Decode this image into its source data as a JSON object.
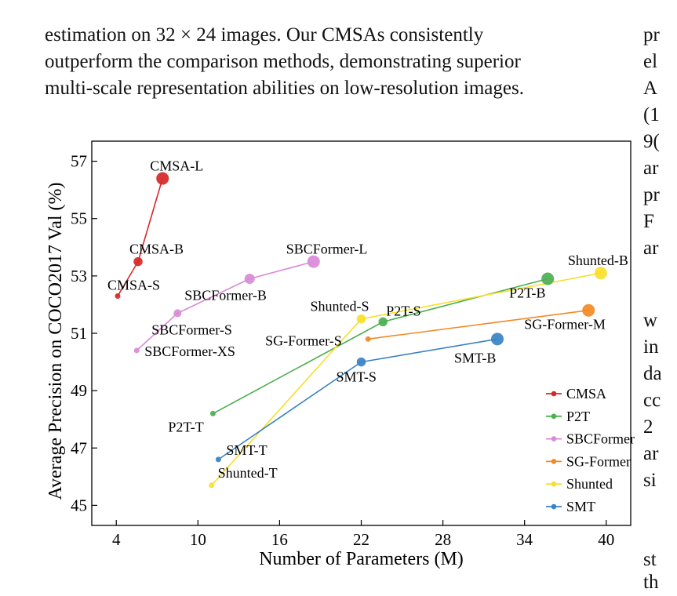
{
  "paragraph": [
    "estimation on 32 × 24 images. Our CMSAs consistently",
    "outperform the comparison methods, demonstrating superior",
    "multi-scale representation abilities on low-resolution images."
  ],
  "right_column_fragments": {
    "top": [
      "pr",
      "el",
      "A",
      "(1",
      "9(",
      "ar",
      "pr",
      "F",
      "ar"
    ],
    "middle": [
      "w",
      "in",
      "da",
      "cc",
      "2",
      "ar",
      "si"
    ],
    "bottom": [
      "st",
      "th"
    ]
  },
  "colors": {
    "CMSA": "#d62728",
    "P2T": "#4caf50",
    "SBCFormer": "#d98ad8",
    "SG-Former": "#f28a24",
    "Shunted": "#f7df2a",
    "SMT": "#3a82c4"
  },
  "chart_data": {
    "type": "line",
    "xlabel": "Number of Parameters (M)",
    "ylabel": "Average Precision on COCO2017 Val (%)",
    "xlim": [
      2.2,
      41.8
    ],
    "ylim": [
      44.3,
      57.7
    ],
    "xticks": [
      4,
      10,
      16,
      22,
      28,
      34,
      40
    ],
    "yticks": [
      45,
      47,
      49,
      51,
      53,
      55,
      57
    ],
    "grid": false,
    "legend_position": "bottom-right",
    "legend": [
      "CMSA",
      "P2T",
      "SBCFormer",
      "SG-Former",
      "Shunted",
      "SMT"
    ],
    "series": [
      {
        "name": "CMSA",
        "points": [
          {
            "label": "CMSA-S",
            "x": 4.1,
            "y": 52.3
          },
          {
            "label": "CMSA-B",
            "x": 5.6,
            "y": 53.5
          },
          {
            "label": "CMSA-L",
            "x": 7.4,
            "y": 56.4
          }
        ]
      },
      {
        "name": "P2T",
        "points": [
          {
            "label": "P2T-T",
            "x": 11.1,
            "y": 48.2
          },
          {
            "label": "P2T-S",
            "x": 23.6,
            "y": 51.4
          },
          {
            "label": "P2T-B",
            "x": 35.7,
            "y": 52.9
          }
        ]
      },
      {
        "name": "SBCFormer",
        "points": [
          {
            "label": "SBCFormer-XS",
            "x": 5.5,
            "y": 50.4
          },
          {
            "label": "SBCFormer-S",
            "x": 8.5,
            "y": 51.7
          },
          {
            "label": "SBCFormer-B",
            "x": 13.8,
            "y": 52.9
          },
          {
            "label": "SBCFormer-L",
            "x": 18.5,
            "y": 53.5
          }
        ]
      },
      {
        "name": "SG-Former",
        "points": [
          {
            "label": "SG-Former-S",
            "x": 22.5,
            "y": 50.8
          },
          {
            "label": "SG-Former-M",
            "x": 38.7,
            "y": 51.8
          }
        ]
      },
      {
        "name": "Shunted",
        "points": [
          {
            "label": "Shunted-T",
            "x": 11.0,
            "y": 45.7
          },
          {
            "label": "Shunted-S",
            "x": 22.0,
            "y": 51.5
          },
          {
            "label": "Shunted-B",
            "x": 39.6,
            "y": 53.1
          }
        ]
      },
      {
        "name": "SMT",
        "points": [
          {
            "label": "SMT-T",
            "x": 11.5,
            "y": 46.6
          },
          {
            "label": "SMT-S",
            "x": 22.0,
            "y": 50.0
          },
          {
            "label": "SMT-B",
            "x": 32.0,
            "y": 50.8
          }
        ]
      }
    ]
  }
}
